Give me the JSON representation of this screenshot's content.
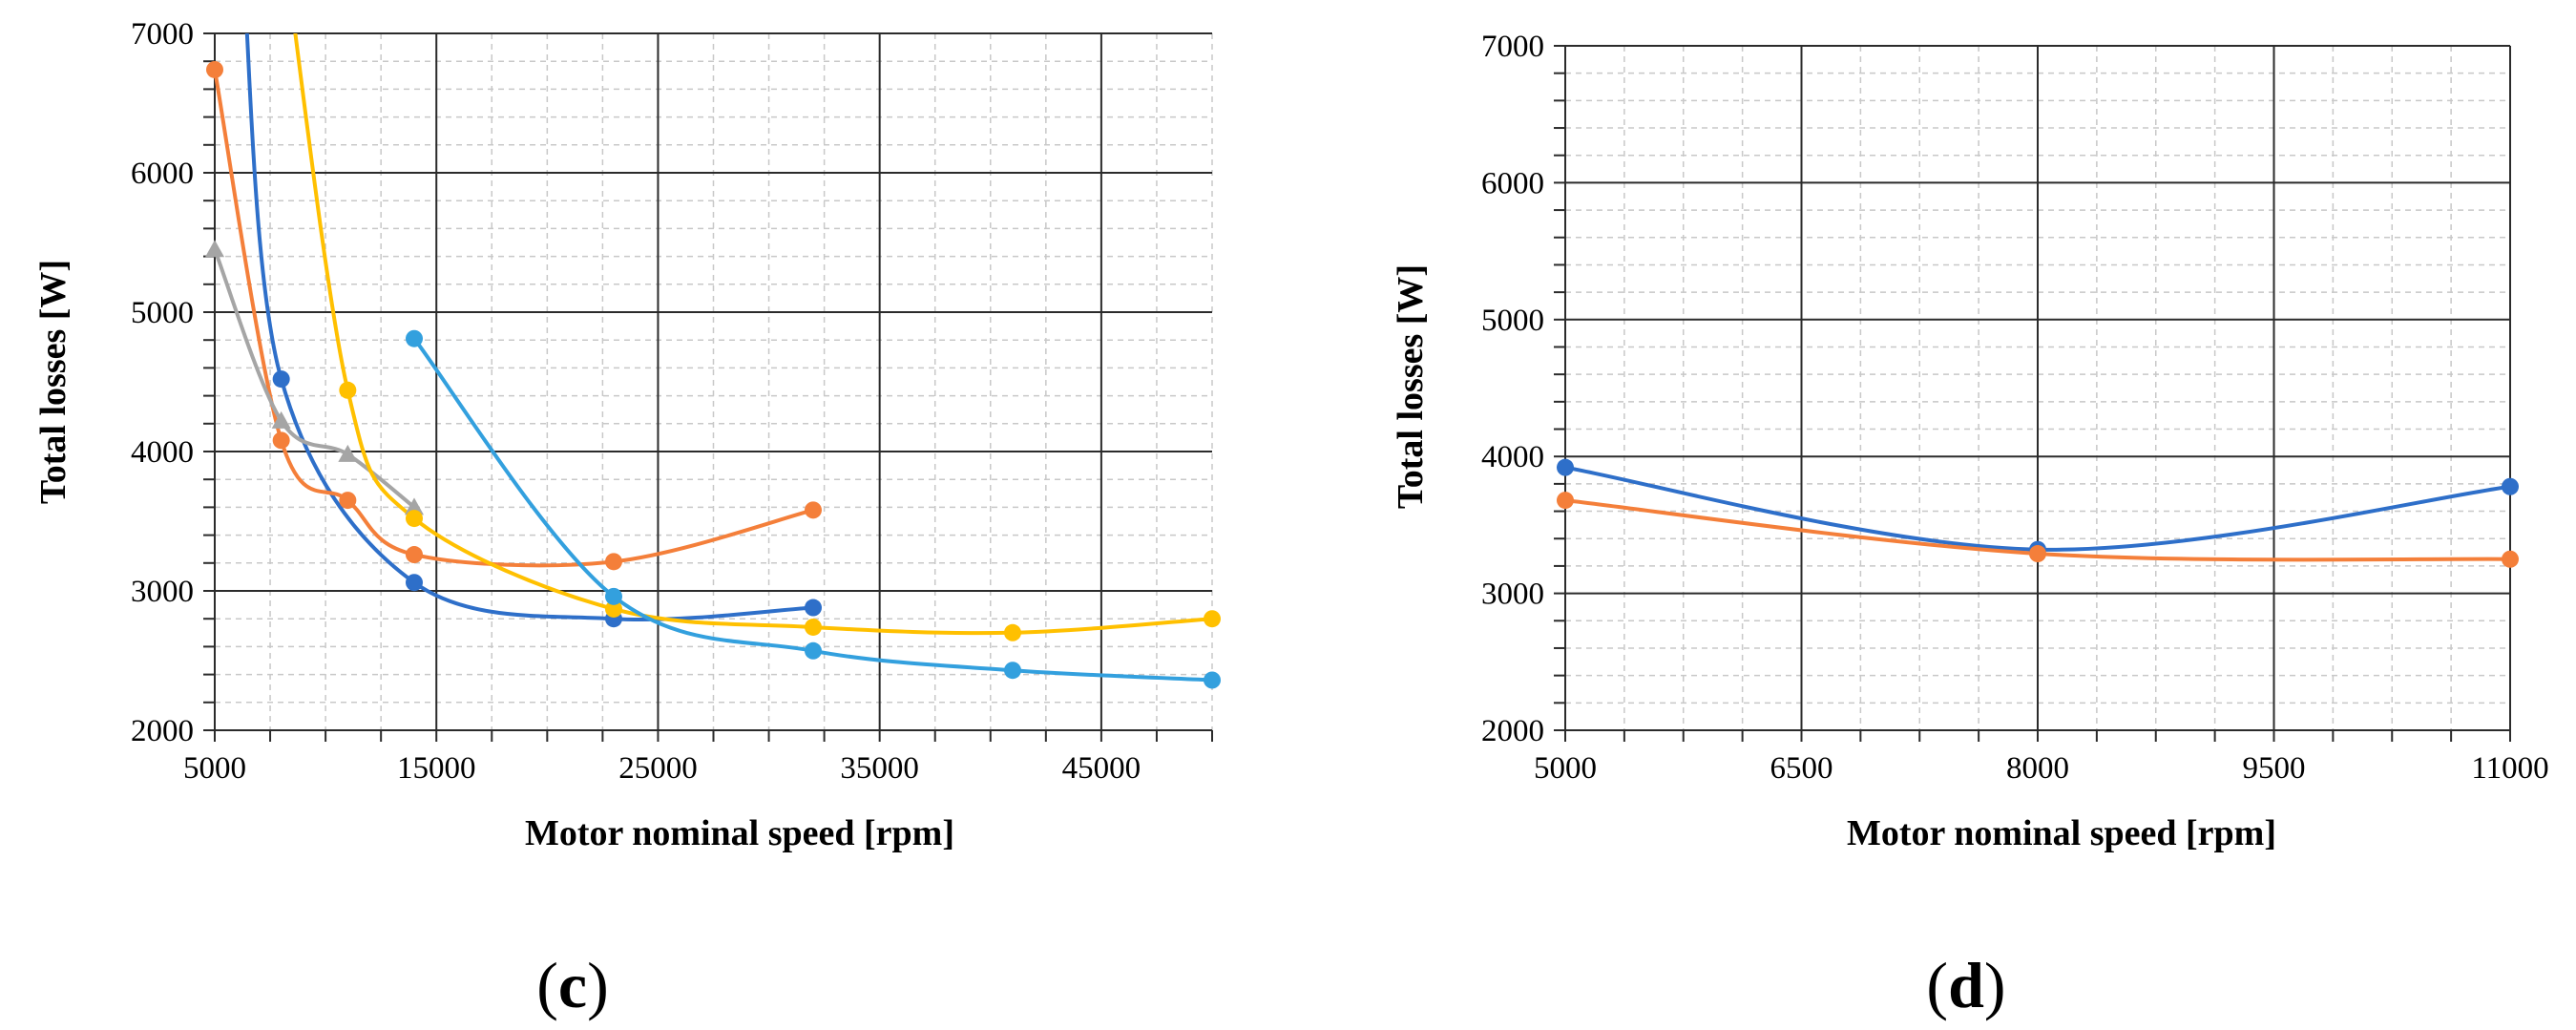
{
  "chart_data": [
    {
      "type": "line",
      "panel_label": "(c)",
      "panel_label_parts": [
        "(",
        "c",
        ")"
      ],
      "xlabel": "Motor nominal speed [rpm]",
      "ylabel": "Total losses [W]",
      "xlim": [
        5000,
        50000
      ],
      "ylim": [
        2000,
        7000
      ],
      "xticks": [
        5000,
        15000,
        25000,
        35000,
        45000
      ],
      "yticks": [
        2000,
        3000,
        4000,
        5000,
        6000,
        7000
      ],
      "major_x_step": 10000,
      "minor_x_step": 2500,
      "major_y_step": 1000,
      "minor_y_step": 200,
      "grid": true,
      "series": [
        {
          "color": "#2e6fc9",
          "marker": "circle",
          "x": [
            8000,
            14000,
            23000,
            32000
          ],
          "y": [
            4520,
            3060,
            2800,
            2880
          ],
          "extend_to": [
            6300,
            7000
          ]
        },
        {
          "color": "#f47f3a",
          "marker": "circle",
          "x": [
            5000,
            8000,
            11000,
            14000,
            23000,
            32000
          ],
          "y": [
            6740,
            4080,
            3650,
            3260,
            3210,
            3580
          ]
        },
        {
          "color": "#a5a5a5",
          "marker": "triangle",
          "x": [
            5000,
            8000,
            11000,
            14000
          ],
          "y": [
            5450,
            4220,
            3980,
            3600
          ]
        },
        {
          "color": "#ffc000",
          "marker": "circle",
          "x": [
            11000,
            14000,
            23000,
            32000,
            41000,
            50000
          ],
          "y": [
            4440,
            3520,
            2870,
            2740,
            2700,
            2800
          ],
          "extend_to": [
            8300,
            7000
          ]
        },
        {
          "color": "#33a0de",
          "marker": "circle",
          "x": [
            14000,
            23000,
            32000,
            41000,
            50000
          ],
          "y": [
            4810,
            2960,
            2570,
            2430,
            2360
          ]
        }
      ]
    },
    {
      "type": "line",
      "panel_label": "(d)",
      "panel_label_parts": [
        "(",
        "d",
        ")"
      ],
      "xlabel": "Motor nominal speed [rpm]",
      "ylabel": "Total losses [W]",
      "xlim": [
        5000,
        11000
      ],
      "ylim": [
        2000,
        7000
      ],
      "xticks": [
        5000,
        6500,
        8000,
        9500,
        11000
      ],
      "yticks": [
        2000,
        3000,
        4000,
        5000,
        6000,
        7000
      ],
      "major_x_step": 1500,
      "minor_x_step": 375,
      "major_y_step": 1000,
      "minor_y_step": 200,
      "grid": true,
      "series": [
        {
          "color": "#2e6fc9",
          "marker": "circle",
          "x": [
            5000,
            8000,
            11000
          ],
          "y": [
            3920,
            3320,
            3780
          ]
        },
        {
          "color": "#f47f3a",
          "marker": "circle",
          "x": [
            5000,
            8000,
            11000
          ],
          "y": [
            3680,
            3290,
            3250
          ]
        }
      ]
    }
  ]
}
